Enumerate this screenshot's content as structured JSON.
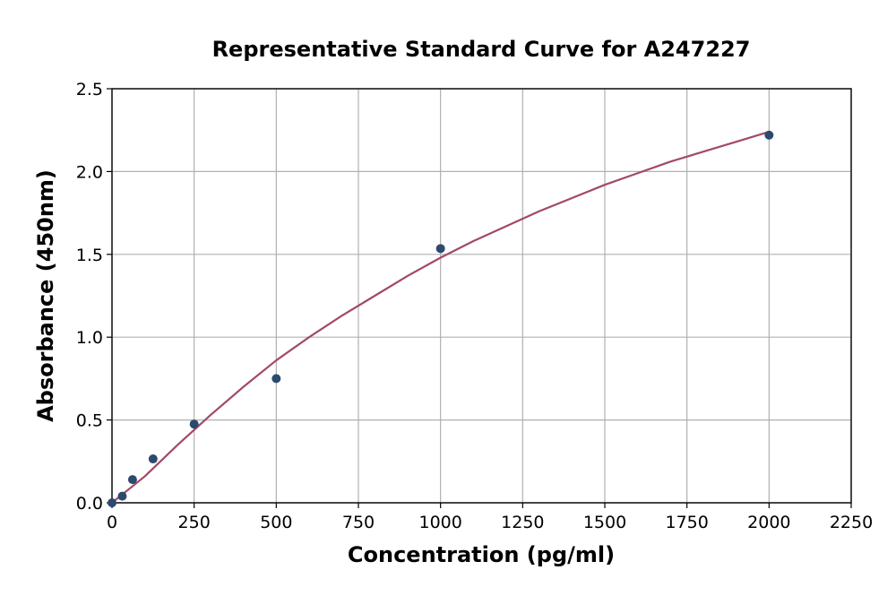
{
  "chart_data": {
    "type": "scatter",
    "title": "Representative Standard Curve for A247227",
    "xlabel": "Concentration (pg/ml)",
    "ylabel": "Absorbance (450nm)",
    "xlim": [
      0,
      2250
    ],
    "ylim": [
      0,
      2.5
    ],
    "x_ticks": [
      "0",
      "250",
      "500",
      "750",
      "1000",
      "1250",
      "1500",
      "1750",
      "2000",
      "2250"
    ],
    "y_ticks": [
      "0.0",
      "0.5",
      "1.0",
      "1.5",
      "2.0",
      "2.5"
    ],
    "grid": true,
    "series": [
      {
        "x": [
          0,
          31.25,
          62.5,
          125,
          250,
          500,
          1000,
          2000
        ],
        "y": [
          0.0,
          0.04,
          0.14,
          0.265,
          0.475,
          0.75,
          1.535,
          2.22
        ],
        "color": "#2c4a6e"
      }
    ],
    "fit_curve": {
      "x": [
        0,
        100,
        200,
        300,
        400,
        500,
        600,
        700,
        800,
        900,
        1000,
        1100,
        1200,
        1300,
        1400,
        1500,
        1600,
        1700,
        1800,
        1900,
        2000
      ],
      "y": [
        0.0,
        0.16,
        0.35,
        0.53,
        0.7,
        0.86,
        1.0,
        1.13,
        1.25,
        1.37,
        1.48,
        1.58,
        1.67,
        1.76,
        1.84,
        1.92,
        1.99,
        2.06,
        2.12,
        2.18,
        2.24
      ],
      "color": "#a3486a"
    }
  }
}
